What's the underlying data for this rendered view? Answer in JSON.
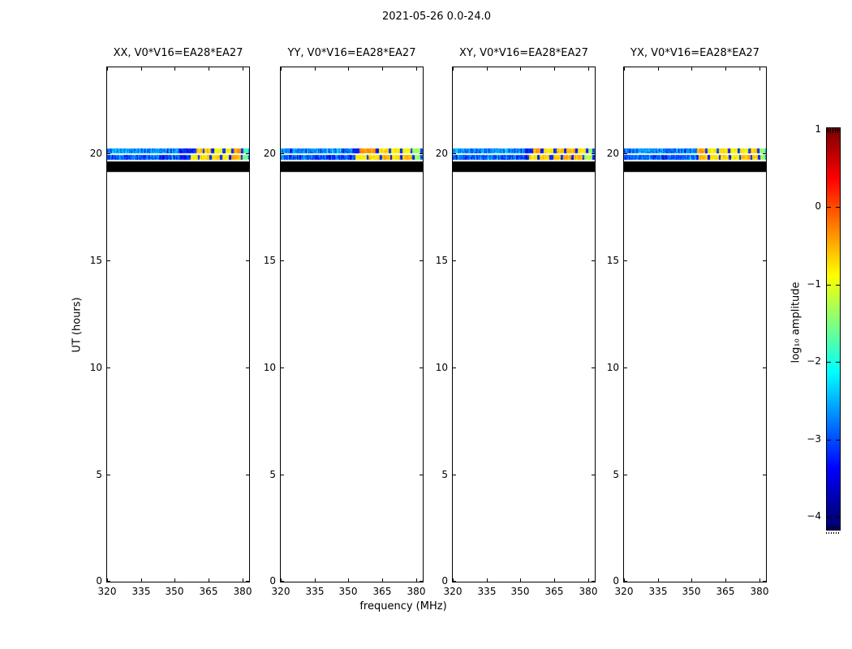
{
  "figure": {
    "title": "2021-05-26 0.0-24.0",
    "xlabel": "frequency (MHz)",
    "ylabel": "UT (hours)",
    "colorbar_label": "log₁₀ amplitude"
  },
  "chart_data": {
    "type": "heatmap",
    "title": "2021-05-26 0.0-24.0",
    "description": "Four dynamic-spectrum (frequency vs UT) panels for correlation products of baseline V0*V16=EA28*EA27; data present only near UT 19.1-20.2 h",
    "subplots": [
      {
        "pol": "XX",
        "title": "XX, V0*V16=EA28*EA27",
        "stripe_upper_patches": [
          [
            359.5,
            362.5,
            -0.55
          ],
          [
            363.2,
            366,
            -0.6
          ],
          [
            367.5,
            371,
            -0.95
          ],
          [
            372.5,
            375,
            -0.85
          ],
          [
            376,
            379.5,
            -0.45
          ],
          [
            380.5,
            382.5,
            -1.7
          ]
        ],
        "stripe_lower_patches": [
          [
            357,
            360.5,
            -0.8
          ],
          [
            361,
            365.5,
            -0.7
          ],
          [
            366.5,
            370,
            -0.65
          ],
          [
            371,
            374,
            -0.8
          ],
          [
            375,
            379.5,
            -0.5
          ],
          [
            380.2,
            382.5,
            -1.5
          ]
        ]
      },
      {
        "pol": "YY",
        "title": "YY, V0*V16=EA28*EA27",
        "stripe_upper_patches": [
          [
            355,
            362,
            -0.35
          ],
          [
            363.5,
            368,
            -0.8
          ],
          [
            369,
            373,
            -0.85
          ],
          [
            374,
            377.5,
            -0.95
          ],
          [
            378.2,
            382,
            -1.4
          ]
        ],
        "stripe_lower_patches": [
          [
            353,
            358,
            -0.8
          ],
          [
            359,
            364,
            -0.75
          ],
          [
            365,
            368.5,
            -0.55
          ],
          [
            369.5,
            373,
            -0.8
          ],
          [
            374,
            378.5,
            -0.55
          ],
          [
            379.5,
            382,
            -1.4
          ]
        ]
      },
      {
        "pol": "XY",
        "title": "XY, V0*V16=EA28*EA27",
        "stripe_upper_patches": [
          [
            355.5,
            359,
            -0.45
          ],
          [
            360.5,
            364.5,
            -0.8
          ],
          [
            366,
            369.5,
            -0.6
          ],
          [
            370.5,
            374.5,
            -0.55
          ],
          [
            375.5,
            379,
            -0.8
          ],
          [
            380,
            382,
            -1.5
          ]
        ],
        "stripe_lower_patches": [
          [
            354,
            357.5,
            -0.75
          ],
          [
            358.5,
            363,
            -0.7
          ],
          [
            364.5,
            368,
            -0.6
          ],
          [
            369,
            372.5,
            -0.45
          ],
          [
            373.5,
            377.5,
            -0.55
          ],
          [
            378.5,
            382,
            -1.2
          ]
        ]
      },
      {
        "pol": "YX",
        "title": "YX, V0*V16=EA28*EA27",
        "stripe_upper_patches": [
          [
            352.5,
            356,
            -0.5
          ],
          [
            357,
            361,
            -0.8
          ],
          [
            362,
            366,
            -0.75
          ],
          [
            367,
            370.5,
            -0.9
          ],
          [
            371.5,
            375,
            -0.8
          ],
          [
            376,
            379,
            -0.6
          ],
          [
            380,
            382.5,
            -1.4
          ]
        ],
        "stripe_lower_patches": [
          [
            353,
            357,
            -0.6
          ],
          [
            358,
            362,
            -0.75
          ],
          [
            363,
            366.5,
            -0.7
          ],
          [
            367.5,
            371,
            -0.8
          ],
          [
            372,
            376,
            -0.5
          ],
          [
            377,
            379.5,
            -0.65
          ],
          [
            380.5,
            382.5,
            -1.3
          ]
        ]
      }
    ],
    "x_axis": {
      "label": "frequency (MHz)",
      "range": [
        320,
        383
      ],
      "tick_values": [
        320,
        335,
        350,
        365,
        380
      ],
      "tick_labels": [
        "320",
        "335",
        "350",
        "365",
        "380"
      ]
    },
    "y_axis": {
      "label": "UT (hours)",
      "range": [
        0,
        24
      ],
      "tick_values": [
        0,
        5,
        10,
        15,
        20
      ],
      "tick_labels": [
        "0",
        "5",
        "10",
        "15",
        "20"
      ]
    },
    "colorbar": {
      "label": "log10 amplitude",
      "colormap": "jet",
      "range": [
        -4,
        1
      ],
      "tick_values": [
        1,
        0,
        -1,
        -2,
        -3,
        -4
      ],
      "tick_labels": [
        "1",
        "0",
        "−1",
        "−2",
        "−3",
        "−4"
      ]
    },
    "time_structure": {
      "stripe_upper_ut": [
        19.97,
        20.21
      ],
      "stripe_lower_ut": [
        19.68,
        19.9
      ],
      "flagged_black_ut": [
        19.12,
        19.6
      ]
    },
    "baseline_log10_amp_range": [
      -3.4,
      -2.2
    ],
    "rfi_region_mhz": [
      352,
      382.5
    ]
  }
}
